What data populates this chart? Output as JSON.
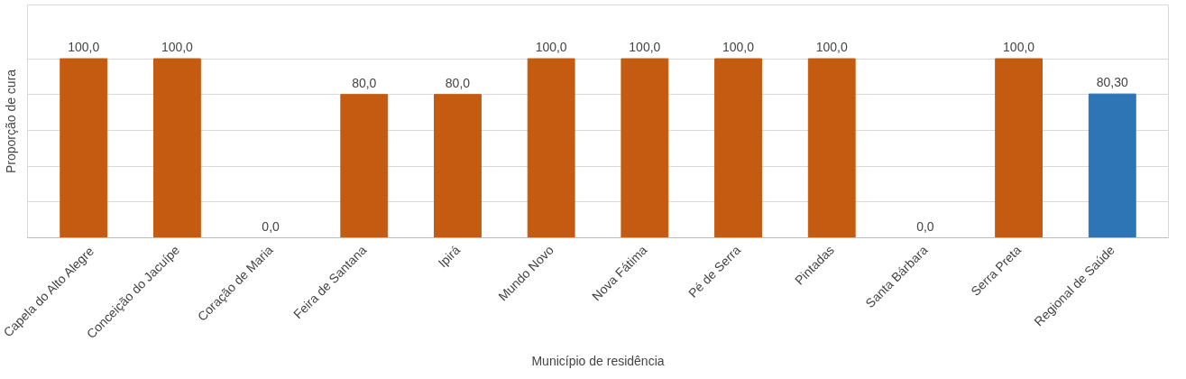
{
  "chart_data": {
    "type": "bar",
    "xlabel": "Município de residência",
    "ylabel": "Proporção de cura",
    "categories": [
      "Capela do Alto Alegre",
      "Conceição do Jacuípe",
      "Coração de Maria",
      "Feira de Santana",
      "Ipirá",
      "Mundo Novo",
      "Nova Fátima",
      "Pé de Serra",
      "Pintadas",
      "Santa Bárbara",
      "Serra Preta",
      "Regional de Saúde"
    ],
    "values": [
      100,
      100,
      0,
      80,
      80,
      100,
      100,
      100,
      100,
      0,
      100,
      80.3
    ],
    "colors": [
      "#c55a11",
      "#c55a11",
      "#c55a11",
      "#c55a11",
      "#c55a11",
      "#c55a11",
      "#c55a11",
      "#c55a11",
      "#c55a11",
      "#c55a11",
      "#c55a11",
      "#2e75b6"
    ],
    "value_labels": [
      "100,0",
      "100,0",
      "0,0",
      "80,0",
      "80,0",
      "100,0",
      "100,0",
      "100,0",
      "100,0",
      "0,0",
      "100,0",
      "80,30"
    ],
    "ylim": [
      0,
      130
    ],
    "yticks": [
      {
        "value": 0,
        "label": null
      },
      {
        "value": 20,
        "label": null
      },
      {
        "value": 40,
        "label": null
      },
      {
        "value": 60,
        "label": null
      },
      {
        "value": 80,
        "label": null
      },
      {
        "value": 100,
        "label": null
      }
    ],
    "grid": "y",
    "tick_labels": "x"
  }
}
